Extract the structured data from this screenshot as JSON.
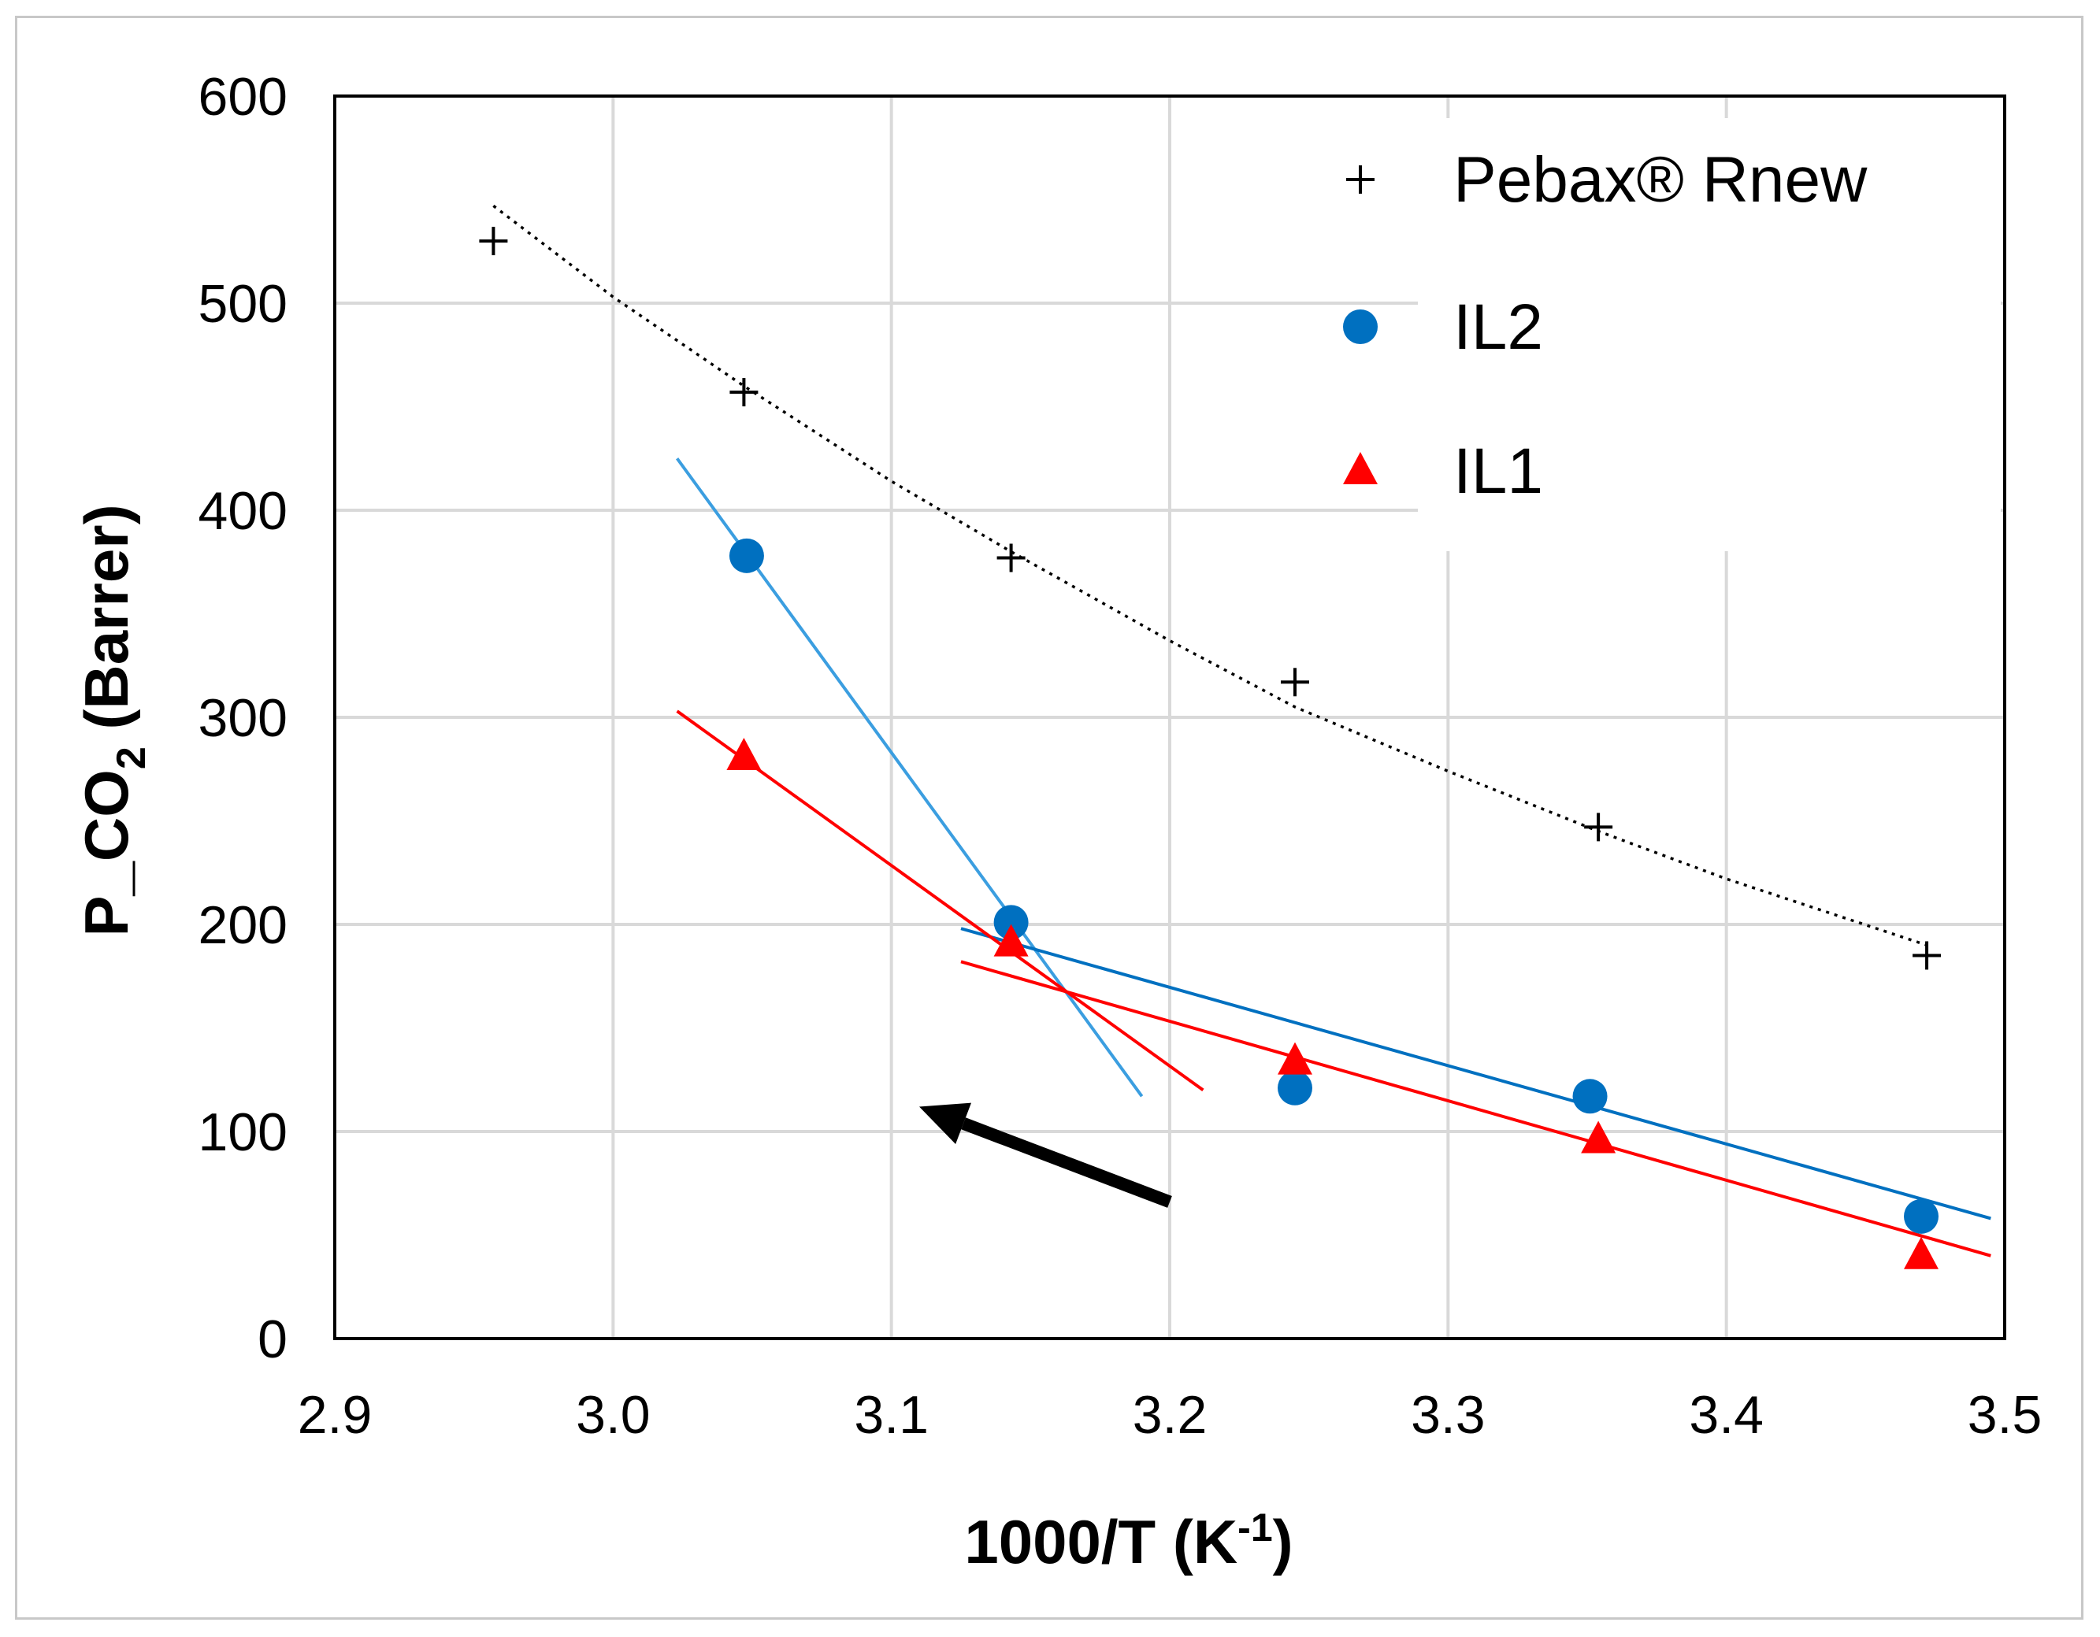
{
  "chart_data": {
    "type": "scatter",
    "title": "",
    "xlabel": {
      "main": "1000/T (K",
      "sup": "-1",
      "close": ")"
    },
    "ylabel": {
      "prefix": "P_CO",
      "sub": "2",
      "suffix": " (Barrer)"
    },
    "xlim": [
      2.9,
      3.5
    ],
    "ylim": [
      0,
      600
    ],
    "grid": true,
    "legend_position": "top-right",
    "x_ticks": [
      "2.9",
      "3.0",
      "3.1",
      "3.2",
      "3.3",
      "3.4",
      "3.5"
    ],
    "y_ticks": [
      "0",
      "100",
      "200",
      "300",
      "400",
      "500",
      "600"
    ],
    "series": [
      {
        "name": "Pebax® Rnew",
        "marker": "plus",
        "color": "#000000",
        "x": [
          2.957,
          3.047,
          3.143,
          3.245,
          3.354,
          3.472
        ],
        "y": [
          530,
          457,
          377,
          317,
          247,
          185
        ],
        "trendline": {
          "style": "dotted",
          "points": [
            [
              2.957,
              547
            ],
            [
              3.0,
              503
            ],
            [
              3.047,
              460
            ],
            [
              3.1,
              414
            ],
            [
              3.143,
              380
            ],
            [
              3.2,
              337
            ],
            [
              3.245,
              305
            ],
            [
              3.3,
              274
            ],
            [
              3.354,
              245
            ],
            [
              3.4,
              222
            ],
            [
              3.472,
              190
            ]
          ]
        }
      },
      {
        "name": "IL2",
        "marker": "circle",
        "color": "#0070C0",
        "x": [
          3.048,
          3.143,
          3.245,
          3.351,
          3.47
        ],
        "y": [
          378,
          201,
          121,
          117,
          59
        ],
        "trendlines": [
          {
            "color": "#3B9EE0",
            "points": [
              [
                3.023,
                425
              ],
              [
                3.19,
                117
              ]
            ]
          },
          {
            "color": "#0070C0",
            "points": [
              [
                3.125,
                198
              ],
              [
                3.495,
                58
              ]
            ]
          }
        ]
      },
      {
        "name": "IL1",
        "marker": "triangle",
        "color": "#FF0000",
        "x": [
          3.047,
          3.143,
          3.245,
          3.354,
          3.47
        ],
        "y": [
          281,
          191,
          134,
          96,
          40
        ],
        "trendlines": [
          {
            "color": "#FF0000",
            "points": [
              [
                3.023,
                303
              ],
              [
                3.212,
                120
              ]
            ]
          },
          {
            "color": "#FF0000",
            "points": [
              [
                3.125,
                182
              ],
              [
                3.495,
                40
              ]
            ]
          }
        ]
      }
    ],
    "annotations": [
      {
        "type": "arrow",
        "from": [
          3.2,
          66
        ],
        "to": [
          3.11,
          112
        ],
        "color": "#000000"
      }
    ]
  }
}
